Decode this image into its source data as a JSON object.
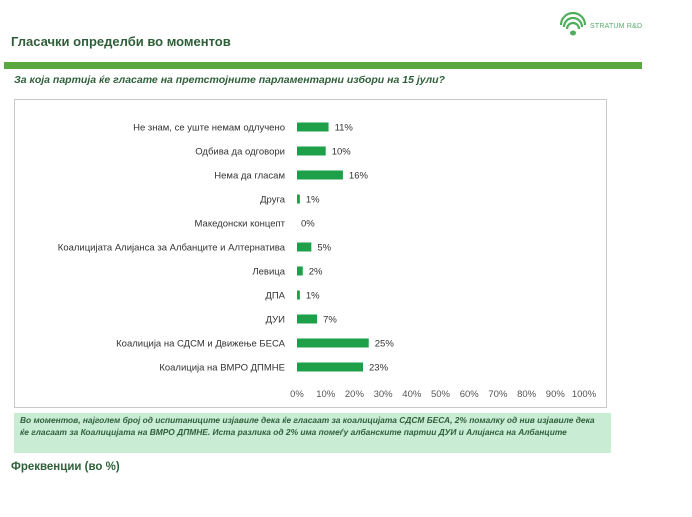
{
  "header": {
    "logo_text": "STRATUM R&D",
    "title": "Гласачки определби во моментов",
    "question": "За која партија ќе гласате на претстојните парламентарни избори на 15 јули?"
  },
  "colors": {
    "bar": "#1ea04a",
    "accent": "#5aa83f",
    "note_bg": "#c8ecd4",
    "title": "#2f5f3a"
  },
  "chart_data": {
    "type": "bar",
    "orientation": "horizontal",
    "categories": [
      "Не знам, се уште немам одлучено",
      "Одбива да одговори",
      "Нема да гласам",
      "Друга",
      "Македонски концепт",
      "Коалицијата Алијанса за Албанците и Алтернатива",
      "Левица",
      "ДПА",
      "ДУИ",
      "Коалиција на СДСМ и Движење БЕСА",
      "Коалиција на ВМРО ДПМНЕ"
    ],
    "values": [
      11,
      10,
      16,
      1,
      0,
      5,
      2,
      1,
      7,
      25,
      23
    ],
    "value_labels": [
      "11%",
      "10%",
      "16%",
      "1%",
      "0%",
      "5%",
      "2%",
      "1%",
      "7%",
      "25%",
      "23%"
    ],
    "xlim": [
      0,
      100
    ],
    "xticks": [
      "0%",
      "10%",
      "20%",
      "30%",
      "40%",
      "50%",
      "60%",
      "70%",
      "80%",
      "90%",
      "100%"
    ],
    "grid": false,
    "legend": false
  },
  "note": "Во моментов, најголем број од испитаниците изјавиле дека ќе гласаат за коалицијата СДСМ БЕСА, 2% помалку од нив изјавиле дека ќе гласаат за Коалицијата на ВМРО ДПМНЕ. Иста разлика од 2% има помеѓу албанските партии ДУИ и Алијанса на Албанците",
  "footer": {
    "label": "Фреквенции (во %)"
  }
}
